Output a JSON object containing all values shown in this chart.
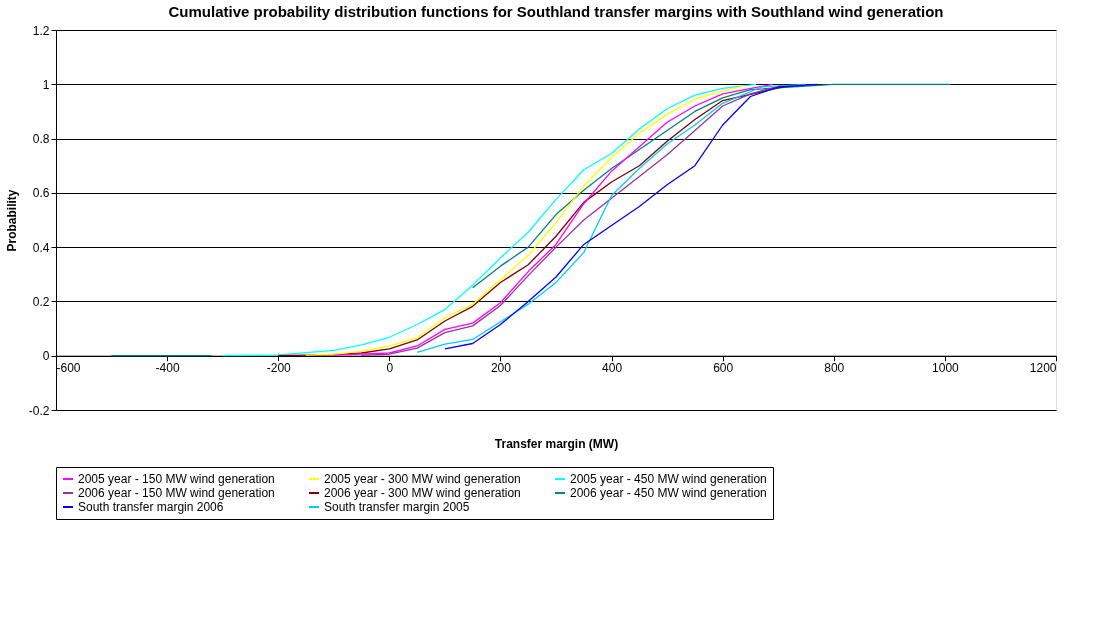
{
  "chart_data": {
    "type": "line",
    "title": "Cumulative probability distribution functions for Southland transfer margins with Southland wind generation",
    "xlabel": "Transfer margin (MW)",
    "ylabel": "Probability",
    "xlim": [
      -600,
      1200
    ],
    "xticks": [
      -600,
      -400,
      -200,
      0,
      200,
      400,
      600,
      800,
      1000,
      1200
    ],
    "ylim": [
      -0.2,
      1.2
    ],
    "yticks": [
      -0.2,
      0,
      0.2,
      0.4,
      0.6,
      0.8,
      1,
      1.2
    ],
    "grid": "y",
    "legend": "bottom",
    "marker": "none",
    "line_style": "solid",
    "series": [
      {
        "name": "2005 year - 150 MW wind generation",
        "color": "#ff00ff",
        "x": [
          -100,
          0,
          50,
          100,
          150,
          200,
          250,
          300,
          350,
          400,
          450,
          500,
          550,
          600,
          690
        ],
        "values": [
          0.002,
          0.01,
          0.036,
          0.097,
          0.12,
          0.195,
          0.31,
          0.41,
          0.56,
          0.68,
          0.77,
          0.86,
          0.92,
          0.965,
          1
        ]
      },
      {
        "name": "2005 year - 300 MW wind generation",
        "color": "#ffff00",
        "x": [
          -150,
          -100,
          -50,
          0,
          50,
          100,
          150,
          200,
          250,
          300,
          350,
          400,
          450,
          500,
          550,
          600,
          640
        ],
        "values": [
          0.002,
          0.006,
          0.016,
          0.036,
          0.066,
          0.14,
          0.19,
          0.28,
          0.37,
          0.49,
          0.625,
          0.73,
          0.82,
          0.89,
          0.945,
          0.975,
          0.995
        ]
      },
      {
        "name": "2005 year - 450 MW wind generation",
        "color": "#00ffff",
        "x": [
          -300,
          -200,
          -100,
          -50,
          0,
          50,
          100,
          150,
          200,
          250,
          300,
          350,
          400,
          450,
          500,
          550,
          600,
          660
        ],
        "values": [
          0,
          0.003,
          0.02,
          0.04,
          0.068,
          0.115,
          0.17,
          0.26,
          0.36,
          0.455,
          0.576,
          0.685,
          0.745,
          0.835,
          0.91,
          0.96,
          0.985,
          1
        ]
      },
      {
        "name": "2006 year - 150 MW wind generation",
        "color": "#993399",
        "x": [
          -50,
          0,
          50,
          100,
          150,
          200,
          250,
          300,
          350,
          400,
          450,
          500,
          550,
          600,
          650,
          710
        ],
        "values": [
          0.001,
          0.006,
          0.028,
          0.085,
          0.11,
          0.185,
          0.295,
          0.4,
          0.5,
          0.58,
          0.66,
          0.74,
          0.83,
          0.92,
          0.965,
          0.997
        ]
      },
      {
        "name": "2006 year - 300 MW wind generation",
        "color": "#800000",
        "x": [
          -200,
          -100,
          -50,
          0,
          50,
          100,
          150,
          200,
          250,
          300,
          350,
          400,
          450,
          500,
          550,
          600,
          730
        ],
        "values": [
          0,
          0.004,
          0.01,
          0.025,
          0.058,
          0.128,
          0.182,
          0.27,
          0.335,
          0.44,
          0.565,
          0.64,
          0.7,
          0.79,
          0.87,
          0.94,
          1
        ]
      },
      {
        "name": "2006 year - 450 MW wind generation",
        "color": "#008080",
        "x": [
          -500,
          -320,
          -310,
          150,
          200,
          250,
          300,
          350,
          400,
          450,
          500,
          550,
          600,
          650,
          800,
          1010
        ],
        "values": [
          0,
          0,
          null,
          0.25,
          0.33,
          0.4,
          0.52,
          0.61,
          0.69,
          0.76,
          0.83,
          0.9,
          0.95,
          0.98,
          1,
          1
        ]
      },
      {
        "name": "South transfer margin 2006",
        "color": "#0000ff",
        "x": [
          100,
          150,
          200,
          250,
          300,
          350,
          400,
          450,
          500,
          550,
          600,
          650,
          700,
          770
        ],
        "values": [
          0.025,
          0.045,
          0.115,
          0.2,
          0.29,
          0.41,
          0.48,
          0.55,
          0.63,
          0.7,
          0.85,
          0.955,
          0.99,
          1
        ]
      },
      {
        "name": "South transfer margin 2005",
        "color": "#00ccff",
        "x": [
          50,
          100,
          150,
          200,
          250,
          300,
          350,
          400,
          450,
          500,
          550,
          600,
          670,
          750
        ],
        "values": [
          0.012,
          0.043,
          0.06,
          0.125,
          0.19,
          0.27,
          0.38,
          0.59,
          0.69,
          0.78,
          0.85,
          0.93,
          0.99,
          1
        ]
      }
    ]
  }
}
